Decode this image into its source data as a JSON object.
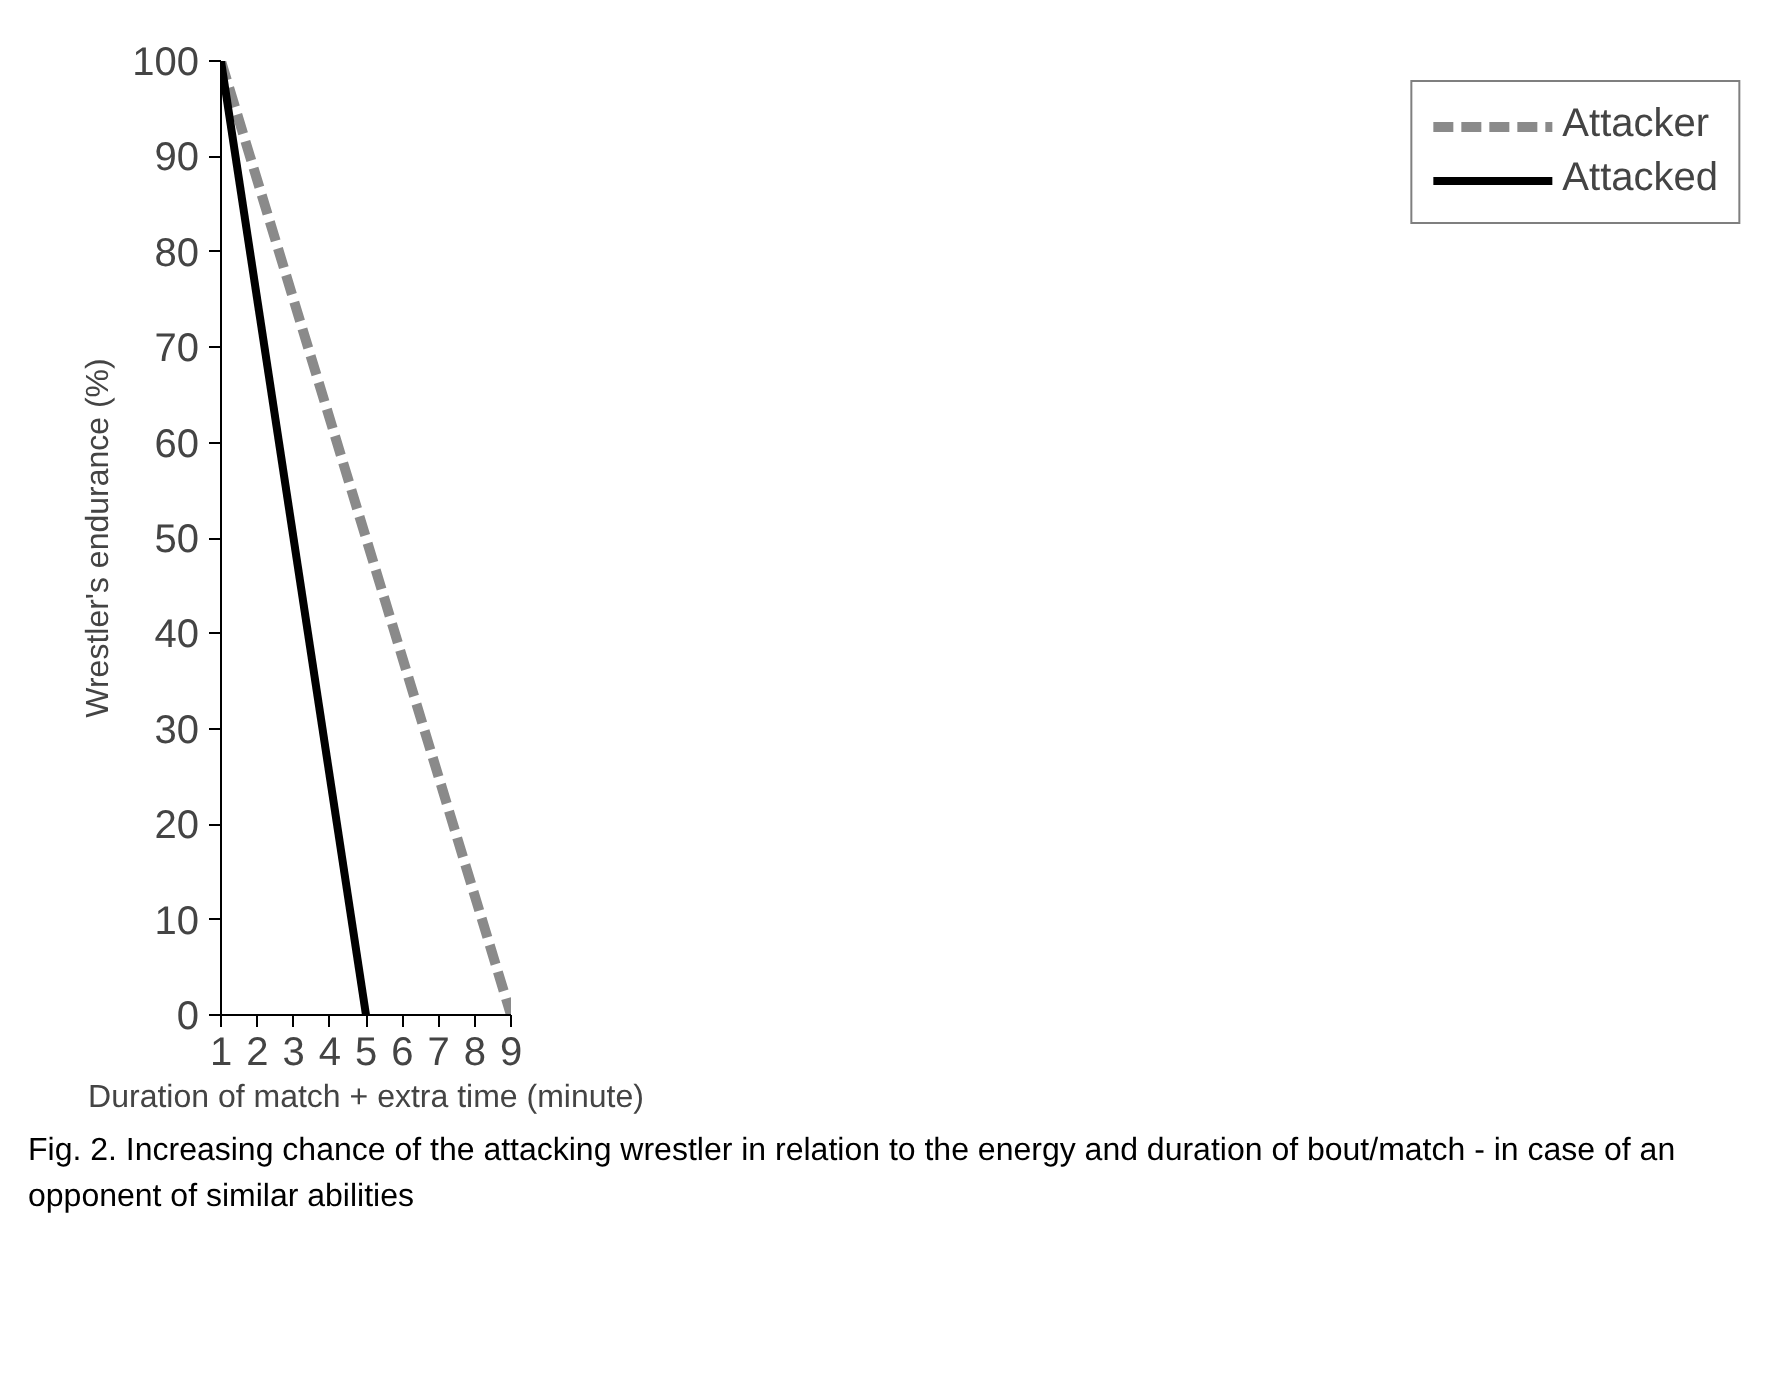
{
  "chart_data": {
    "type": "line",
    "xlabel": "Duration of match + extra time (minute)",
    "ylabel": "Wrestler's endurance (%)",
    "x": [
      1,
      9
    ],
    "series": [
      {
        "name": "Attacker",
        "color": "#8a8a8a",
        "values": [
          100,
          0
        ],
        "line_style": "dashed"
      },
      {
        "name": "Attacked",
        "color": "#000000",
        "values": [
          100,
          0
        ],
        "x": [
          1,
          5
        ],
        "line_style": "solid"
      }
    ],
    "xlim": [
      1,
      9
    ],
    "xticks": [
      1,
      2,
      3,
      4,
      5,
      6,
      7,
      8,
      9
    ],
    "ylim": [
      0,
      100
    ],
    "yticks": [
      0,
      10,
      20,
      30,
      40,
      50,
      60,
      70,
      80,
      90,
      100
    ],
    "grid": false,
    "legend": "right",
    "marker": "none",
    "annotations": [
      "Fig. 2. Increasing chance of the attacking wrestler in relation to the energy and duration of bout/match - in case of an opponent of similar abilities"
    ]
  }
}
